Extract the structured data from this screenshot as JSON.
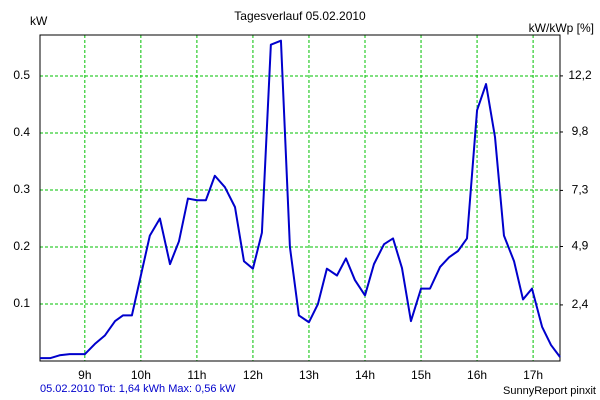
{
  "chart_data": {
    "type": "line",
    "title": "Tagesverlauf 05.02.2010",
    "y_label": "kW",
    "y2_label": "kW/kWp [%]",
    "footer_left": "05.02.2010 Tot: 1,64 kWh Max: 0,56 kW",
    "footer_right": "SunnyReport pinxit",
    "grid": true,
    "xlim": [
      8.2,
      17.48
    ],
    "xticks": [
      {
        "value": 9,
        "label": "9h"
      },
      {
        "value": 10,
        "label": "10h"
      },
      {
        "value": 11,
        "label": "11h"
      },
      {
        "value": 12,
        "label": "12h"
      },
      {
        "value": 13,
        "label": "13h"
      },
      {
        "value": 14,
        "label": "14h"
      },
      {
        "value": 15,
        "label": "15h"
      },
      {
        "value": 16,
        "label": "16h"
      },
      {
        "value": 17,
        "label": "17h"
      }
    ],
    "ylim": [
      0,
      0.572
    ],
    "yticks": [
      0.1,
      0.2,
      0.3,
      0.4,
      0.5
    ],
    "y2lim": [
      0,
      13.95
    ],
    "y2ticks": [
      {
        "value": 2.4,
        "label": "2,4"
      },
      {
        "value": 4.9,
        "label": "4,9"
      },
      {
        "value": 7.3,
        "label": "7,3"
      },
      {
        "value": 9.8,
        "label": "9,8"
      },
      {
        "value": 12.2,
        "label": "12,2"
      }
    ],
    "x": [
      8.2,
      8.38,
      8.55,
      8.73,
      9.0,
      9.18,
      9.36,
      9.54,
      9.68,
      9.84,
      10.0,
      10.16,
      10.34,
      10.52,
      10.68,
      10.84,
      11.0,
      11.16,
      11.32,
      11.5,
      11.68,
      11.84,
      12.0,
      12.16,
      12.32,
      12.5,
      12.66,
      12.82,
      13.0,
      13.16,
      13.32,
      13.5,
      13.66,
      13.82,
      14.0,
      14.16,
      14.34,
      14.5,
      14.66,
      14.82,
      15.0,
      15.16,
      15.34,
      15.5,
      15.66,
      15.82,
      16.0,
      16.16,
      16.32,
      16.48,
      16.66,
      16.82,
      16.98,
      17.16,
      17.32,
      17.48
    ],
    "series": [
      {
        "name": "kW",
        "color": "#0000cc",
        "values": [
          0.005,
          0.005,
          0.01,
          0.012,
          0.012,
          0.03,
          0.045,
          0.07,
          0.08,
          0.08,
          0.15,
          0.22,
          0.25,
          0.17,
          0.21,
          0.285,
          0.282,
          0.282,
          0.325,
          0.305,
          0.27,
          0.175,
          0.162,
          0.225,
          0.555,
          0.562,
          0.2,
          0.08,
          0.068,
          0.1,
          0.162,
          0.15,
          0.18,
          0.142,
          0.115,
          0.17,
          0.205,
          0.215,
          0.163,
          0.07,
          0.127,
          0.127,
          0.165,
          0.182,
          0.193,
          0.215,
          0.44,
          0.486,
          0.393,
          0.22,
          0.175,
          0.108,
          0.127,
          0.06,
          0.028,
          0.007
        ]
      }
    ]
  }
}
